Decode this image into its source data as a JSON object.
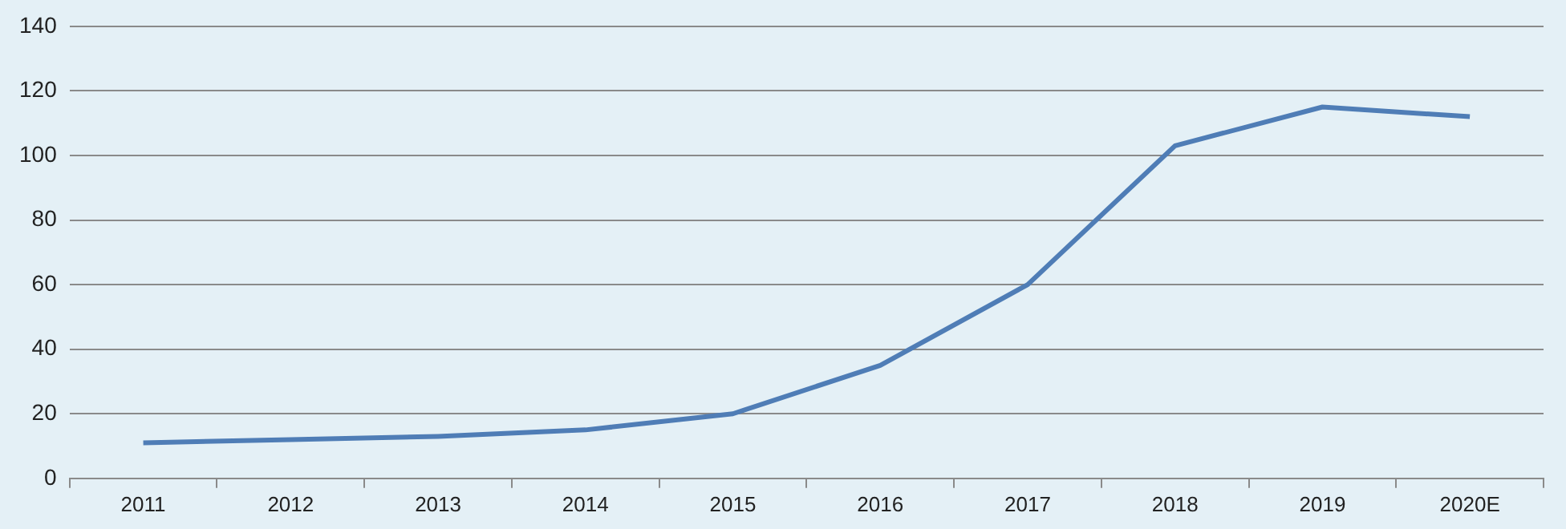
{
  "chart_data": {
    "type": "line",
    "categories": [
      "2011",
      "2012",
      "2013",
      "2014",
      "2015",
      "2016",
      "2017",
      "2018",
      "2019",
      "2020E"
    ],
    "series": [
      {
        "color": "#4f7db6",
        "values": [
          11,
          12,
          13,
          15,
          20,
          35,
          60,
          103,
          115,
          112
        ]
      }
    ],
    "ylim": [
      0,
      140
    ],
    "yticks": [
      0,
      20,
      40,
      60,
      80,
      100,
      120,
      140
    ],
    "grid": "y",
    "legend": false,
    "marker": "none",
    "line_style": "solid"
  }
}
